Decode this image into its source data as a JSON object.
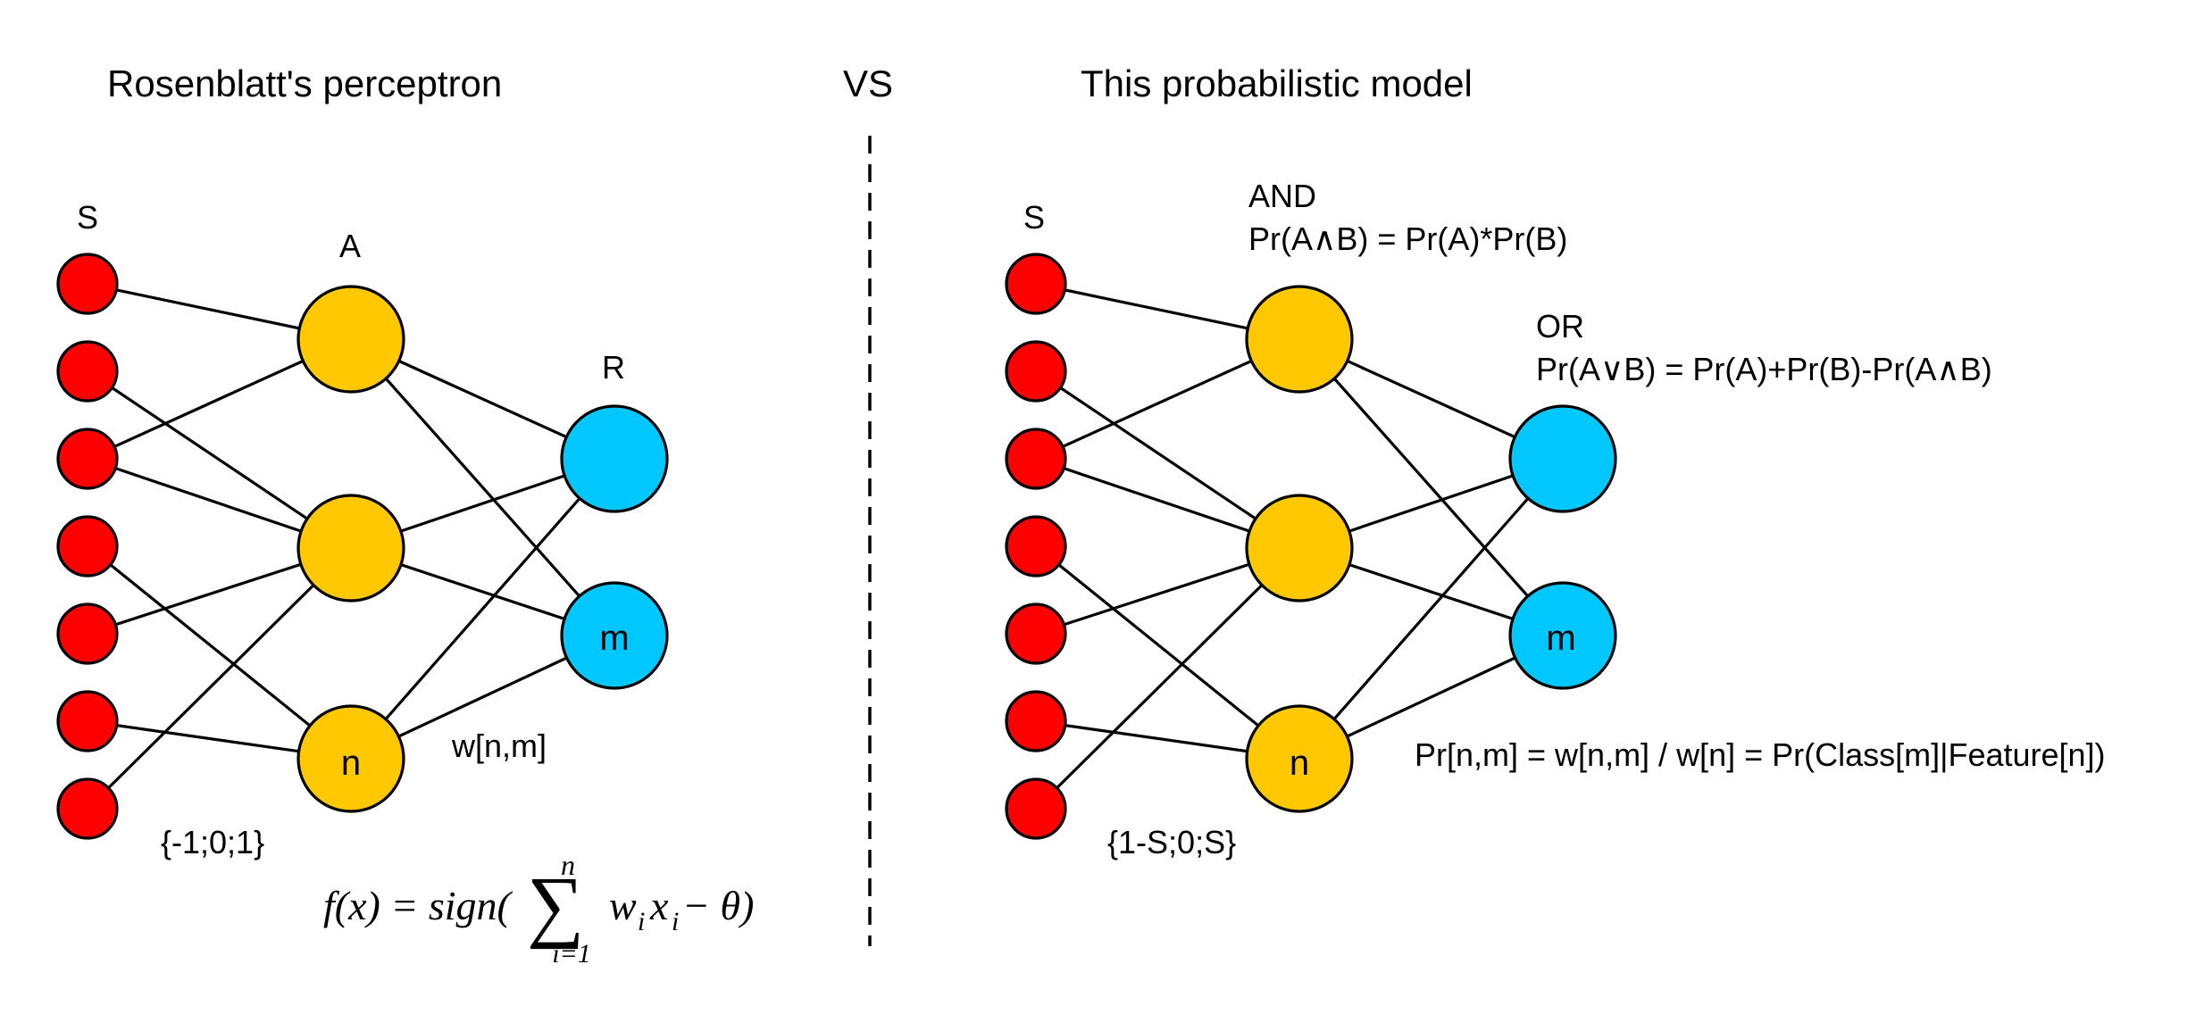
{
  "titles": {
    "left": "Rosenblatt's perceptron",
    "vs": "VS",
    "right": "This probabilistic model"
  },
  "left": {
    "s_label": "S",
    "a_label": "A",
    "r_label": "R",
    "n_label": "n",
    "m_label": "m",
    "weight_label": "w[n,m]",
    "input_values": "{-1;0;1}",
    "formula": {
      "lhs": "f(x) = sign(",
      "sum_top": "n",
      "sum_bottom": "i=1",
      "body": "w",
      "sub_i": "i",
      "x": "x",
      "sub_i2": "i",
      "rest": " − θ)"
    }
  },
  "right": {
    "s_label": "S",
    "and_label": "AND",
    "and_formula": "Pr(A∧B) = Pr(A)*Pr(B)",
    "or_label": "OR",
    "or_formula": "Pr(A∨B) = Pr(A)+Pr(B)-Pr(A∧B)",
    "n_label": "n",
    "m_label": "m",
    "prob_formula": "Pr[n,m] = w[n,m] / w[n] = Pr(Class[m]|Feature[n])",
    "input_values": "{1-S;0;S}"
  },
  "colors": {
    "input": "#ff0000",
    "hidden": "#ffc800",
    "output": "#00c8ff"
  },
  "network": {
    "inputs": 7,
    "hidden": 3,
    "outputs": 2,
    "input_hidden_edges": [
      [
        0,
        0
      ],
      [
        1,
        1
      ],
      [
        2,
        0
      ],
      [
        2,
        1
      ],
      [
        3,
        2
      ],
      [
        4,
        1
      ],
      [
        5,
        2
      ],
      [
        6,
        1
      ]
    ],
    "hidden_output_edges": [
      [
        0,
        0
      ],
      [
        0,
        1
      ],
      [
        1,
        0
      ],
      [
        1,
        1
      ],
      [
        2,
        0
      ],
      [
        2,
        1
      ]
    ]
  }
}
